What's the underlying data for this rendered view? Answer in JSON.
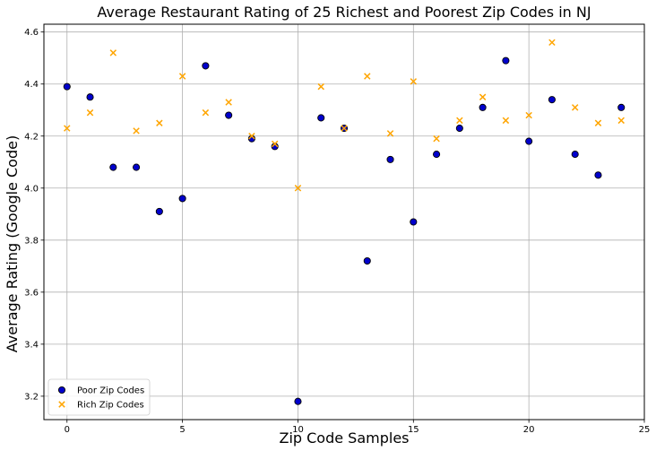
{
  "chart_data": {
    "type": "scatter",
    "title": "Average Restaurant Rating of 25 Richest and Poorest Zip Codes in NJ",
    "xlabel": "Zip Code Samples",
    "ylabel": "Average Rating (Google Code)",
    "xlim": [
      -1,
      25
    ],
    "ylim": [
      3.11,
      4.63
    ],
    "xticks": [
      0,
      5,
      10,
      15,
      20,
      25
    ],
    "yticks": [
      3.2,
      3.4,
      3.6,
      3.8,
      4.0,
      4.2,
      4.4,
      4.6
    ],
    "grid": true,
    "legend_position": "lower-left",
    "series": [
      {
        "name": "Poor Zip Codes",
        "marker": "circle",
        "color": "#0000cc",
        "edge_color": "#000000",
        "x": [
          0,
          1,
          2,
          3,
          4,
          5,
          6,
          7,
          8,
          9,
          10,
          11,
          12,
          13,
          14,
          15,
          16,
          17,
          18,
          19,
          20,
          21,
          22,
          23,
          24
        ],
        "y": [
          4.39,
          4.35,
          4.08,
          4.08,
          3.91,
          3.96,
          4.47,
          4.28,
          4.19,
          4.16,
          3.18,
          4.27,
          4.23,
          3.72,
          4.11,
          3.87,
          4.13,
          4.23,
          4.31,
          4.49,
          4.18,
          4.34,
          4.13,
          4.05,
          4.31
        ]
      },
      {
        "name": "Rich Zip Codes",
        "marker": "x",
        "color": "#ffa500",
        "x": [
          0,
          1,
          2,
          3,
          4,
          5,
          6,
          7,
          8,
          9,
          10,
          11,
          12,
          13,
          14,
          15,
          16,
          17,
          18,
          19,
          20,
          21,
          22,
          23,
          24
        ],
        "y": [
          4.23,
          4.29,
          4.52,
          4.22,
          4.25,
          4.43,
          4.29,
          4.33,
          4.2,
          4.17,
          4.0,
          4.39,
          4.23,
          4.43,
          4.21,
          4.41,
          4.19,
          4.26,
          4.35,
          4.26,
          4.28,
          4.56,
          4.31,
          4.25,
          4.26
        ]
      }
    ]
  }
}
